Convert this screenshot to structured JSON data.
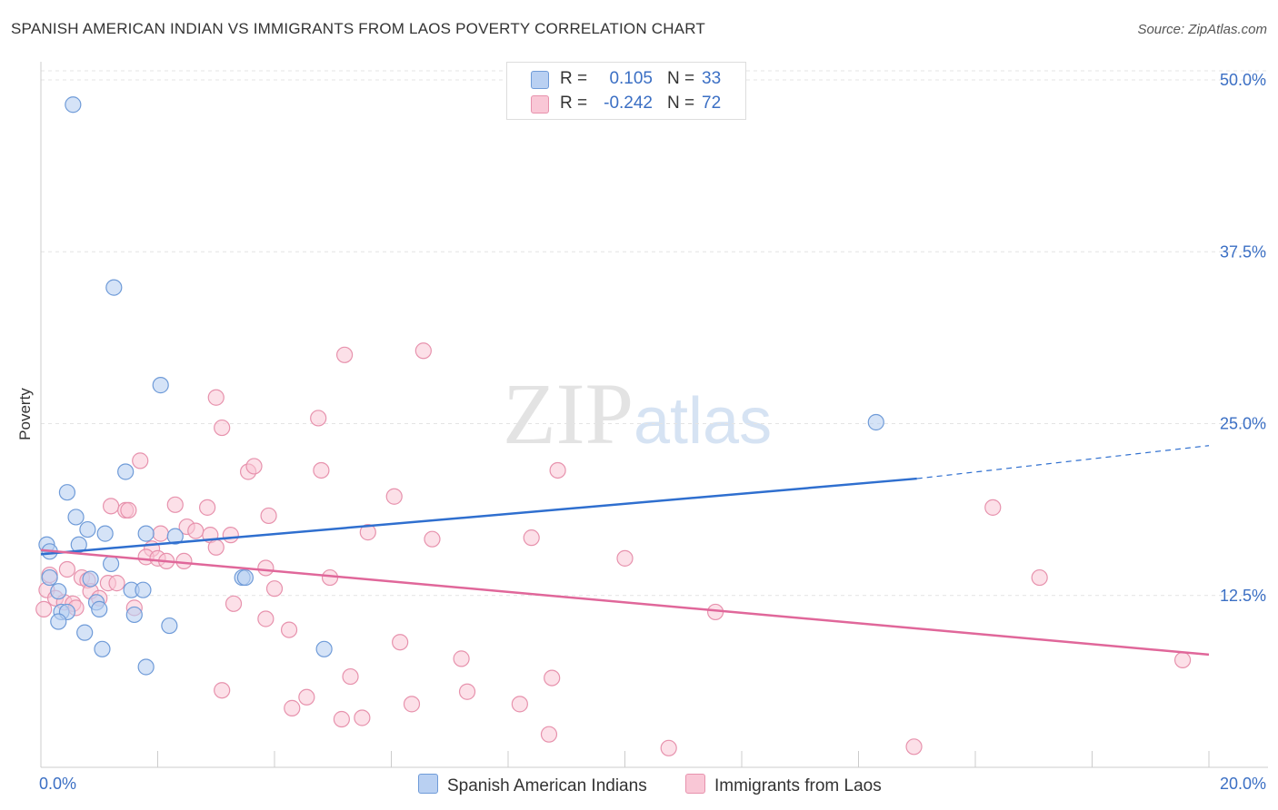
{
  "title": "SPANISH AMERICAN INDIAN VS IMMIGRANTS FROM LAOS POVERTY CORRELATION CHART",
  "source": "Source: ZipAtlas.com",
  "watermark": {
    "zip": "ZIP",
    "atlas": "atlas"
  },
  "legend": {
    "series1": {
      "r_label": "R =",
      "r_value": "0.105",
      "n_label": "N =",
      "n_value": "33"
    },
    "series2": {
      "r_label": "R =",
      "r_value": "-0.242",
      "n_label": "N =",
      "n_value": "72"
    }
  },
  "bottom_legend": {
    "series1": "Spanish American Indians",
    "series2": "Immigrants from Laos"
  },
  "chart_data": {
    "type": "scatter",
    "title": "SPANISH AMERICAN INDIAN VS IMMIGRANTS FROM LAOS POVERTY CORRELATION CHART",
    "xlabel": "",
    "ylabel": "Poverty",
    "xlim": [
      0,
      20
    ],
    "ylim": [
      0,
      50
    ],
    "x_tick_labels": [
      "0.0%",
      "20.0%"
    ],
    "y_ticks": [
      12.5,
      25.0,
      37.5,
      50.0
    ],
    "y_tick_labels": [
      "12.5%",
      "25.0%",
      "37.5%",
      "50.0%"
    ],
    "grid": true,
    "legend_position": "top-center",
    "colors": {
      "series1_fill": "#b9d0f2",
      "series1_stroke": "#6f9bd8",
      "series1_line": "#2f6fcf",
      "series2_fill": "#f9c7d6",
      "series2_stroke": "#e792ad",
      "series2_line": "#e0679a"
    },
    "series": [
      {
        "name": "Spanish American Indians",
        "r": 0.105,
        "n": 33,
        "trend": {
          "x0": 0,
          "y0": 15.5,
          "x1": 15.0,
          "y1": 21.0,
          "dash_to_x": 20,
          "dash_to_y": 23.4
        },
        "points": [
          [
            0.55,
            48.2
          ],
          [
            1.25,
            34.9
          ],
          [
            2.05,
            27.8
          ],
          [
            14.3,
            25.1
          ],
          [
            1.45,
            21.5
          ],
          [
            0.45,
            20.0
          ],
          [
            0.6,
            18.2
          ],
          [
            0.8,
            17.3
          ],
          [
            0.1,
            16.2
          ],
          [
            0.15,
            15.7
          ],
          [
            1.1,
            17.0
          ],
          [
            0.65,
            16.2
          ],
          [
            0.85,
            13.7
          ],
          [
            1.2,
            14.8
          ],
          [
            1.8,
            17.0
          ],
          [
            2.3,
            16.8
          ],
          [
            0.3,
            12.8
          ],
          [
            0.35,
            11.3
          ],
          [
            0.45,
            11.3
          ],
          [
            0.95,
            12.0
          ],
          [
            1.0,
            11.5
          ],
          [
            1.55,
            12.9
          ],
          [
            1.75,
            12.9
          ],
          [
            3.45,
            13.8
          ],
          [
            3.5,
            13.8
          ],
          [
            0.3,
            10.6
          ],
          [
            0.75,
            9.8
          ],
          [
            2.2,
            10.3
          ],
          [
            1.05,
            8.6
          ],
          [
            4.85,
            8.6
          ],
          [
            1.8,
            7.3
          ],
          [
            0.15,
            13.8
          ],
          [
            1.6,
            11.1
          ]
        ]
      },
      {
        "name": "Immigrants from Laos",
        "r": -0.242,
        "n": 72,
        "trend": {
          "x0": 0,
          "y0": 15.8,
          "x1": 20,
          "y1": 8.2
        },
        "points": [
          [
            6.55,
            30.3
          ],
          [
            5.2,
            30.0
          ],
          [
            3.0,
            26.9
          ],
          [
            3.1,
            24.7
          ],
          [
            4.75,
            25.4
          ],
          [
            1.7,
            22.3
          ],
          [
            3.55,
            21.5
          ],
          [
            3.65,
            21.9
          ],
          [
            4.8,
            21.6
          ],
          [
            8.85,
            21.6
          ],
          [
            1.2,
            19.0
          ],
          [
            1.45,
            18.7
          ],
          [
            1.5,
            18.7
          ],
          [
            2.3,
            19.1
          ],
          [
            2.85,
            18.9
          ],
          [
            3.9,
            18.3
          ],
          [
            6.05,
            19.7
          ],
          [
            16.3,
            18.9
          ],
          [
            2.05,
            17.0
          ],
          [
            2.5,
            17.5
          ],
          [
            2.65,
            17.2
          ],
          [
            2.9,
            16.9
          ],
          [
            3.25,
            16.9
          ],
          [
            5.6,
            17.1
          ],
          [
            6.7,
            16.6
          ],
          [
            8.4,
            16.7
          ],
          [
            1.9,
            15.9
          ],
          [
            3.0,
            16.0
          ],
          [
            1.8,
            15.3
          ],
          [
            2.0,
            15.2
          ],
          [
            2.15,
            15.0
          ],
          [
            2.45,
            15.0
          ],
          [
            10.0,
            15.2
          ],
          [
            0.45,
            14.4
          ],
          [
            0.7,
            13.8
          ],
          [
            0.8,
            13.6
          ],
          [
            1.15,
            13.4
          ],
          [
            1.3,
            13.4
          ],
          [
            3.85,
            14.5
          ],
          [
            4.95,
            13.8
          ],
          [
            17.1,
            13.8
          ],
          [
            0.1,
            12.9
          ],
          [
            0.25,
            12.3
          ],
          [
            0.4,
            12.0
          ],
          [
            0.55,
            11.9
          ],
          [
            0.85,
            12.8
          ],
          [
            1.0,
            12.3
          ],
          [
            1.6,
            11.6
          ],
          [
            3.3,
            11.9
          ],
          [
            4.0,
            13.0
          ],
          [
            0.05,
            11.5
          ],
          [
            0.6,
            11.6
          ],
          [
            11.55,
            11.3
          ],
          [
            3.85,
            10.8
          ],
          [
            4.25,
            10.0
          ],
          [
            6.15,
            9.1
          ],
          [
            7.2,
            7.9
          ],
          [
            19.55,
            7.8
          ],
          [
            5.3,
            6.6
          ],
          [
            8.75,
            6.5
          ],
          [
            3.1,
            5.6
          ],
          [
            7.3,
            5.5
          ],
          [
            4.55,
            5.1
          ],
          [
            4.3,
            4.3
          ],
          [
            6.35,
            4.6
          ],
          [
            8.2,
            4.6
          ],
          [
            5.15,
            3.5
          ],
          [
            5.5,
            3.6
          ],
          [
            8.7,
            2.4
          ],
          [
            10.75,
            1.4
          ],
          [
            14.95,
            1.5
          ],
          [
            0.15,
            14.0
          ]
        ]
      }
    ]
  }
}
